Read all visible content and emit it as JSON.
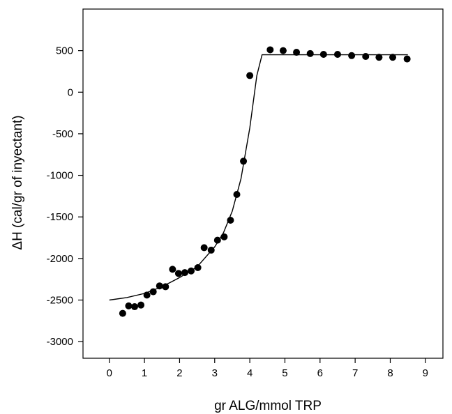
{
  "chart_data": {
    "type": "scatter",
    "title": "",
    "xlabel": "gr ALG/mmol TRP",
    "ylabel": "ΔH (cal/gr of inyectant)",
    "xlim": [
      -0.75,
      9.5
    ],
    "ylim": [
      -3200,
      1000
    ],
    "x_ticks": [
      0,
      1,
      2,
      3,
      4,
      5,
      6,
      7,
      8,
      9
    ],
    "y_ticks": [
      -3000,
      -2500,
      -2000,
      -1500,
      -1000,
      -500,
      0,
      500
    ],
    "x_tick_labels": [
      "0",
      "1",
      "2",
      "3",
      "4",
      "5",
      "6",
      "7",
      "8",
      "9"
    ],
    "y_tick_labels": [
      "-3000",
      "-2500",
      "-2000",
      "-1500",
      "-1000",
      "-500",
      "0",
      "500"
    ],
    "grid": false,
    "series": [
      {
        "kind": "scatter",
        "x": [
          0.38,
          0.55,
          0.72,
          0.9,
          1.07,
          1.25,
          1.43,
          1.6,
          1.8,
          1.97,
          2.15,
          2.33,
          2.52,
          2.7,
          2.9,
          3.08,
          3.27,
          3.45,
          3.63,
          3.82,
          4.0,
          4.58,
          4.95,
          5.33,
          5.72,
          6.1,
          6.5,
          6.9,
          7.3,
          7.68,
          8.07,
          8.48
        ],
        "y": [
          -2660,
          -2570,
          -2580,
          -2560,
          -2440,
          -2400,
          -2330,
          -2340,
          -2130,
          -2180,
          -2170,
          -2150,
          -2110,
          -1870,
          -1900,
          -1780,
          -1740,
          -1540,
          -1230,
          -830,
          200,
          510,
          500,
          480,
          465,
          455,
          455,
          440,
          430,
          420,
          420,
          400
        ]
      },
      {
        "kind": "line",
        "x": [
          0,
          0.5,
          1.0,
          1.5,
          2.0,
          2.5,
          3.0,
          3.25,
          3.5,
          3.75,
          4.0,
          4.2,
          4.35,
          5.0,
          6.0,
          7.0,
          8.0,
          8.5
        ],
        "y": [
          -2500,
          -2470,
          -2420,
          -2340,
          -2230,
          -2100,
          -1860,
          -1690,
          -1430,
          -1040,
          -430,
          200,
          450,
          450,
          450,
          450,
          450,
          450
        ]
      }
    ]
  }
}
